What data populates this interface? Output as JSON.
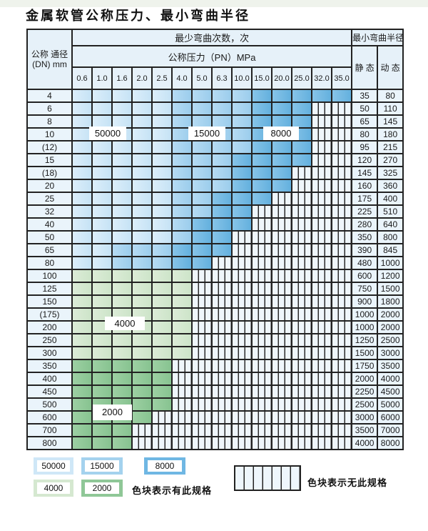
{
  "title": "金属软管公称压力、最小弯曲半径",
  "table": {
    "header": {
      "dn_lines": "公称 通径 (DN) mm",
      "bend_cycles": "最少弯曲次数，次",
      "min_radius": "最小弯曲半径",
      "pressure_title": "公称压力（PN）MPa",
      "pressures": [
        "0.6",
        "1.0",
        "1.6",
        "2.0",
        "2.5",
        "4.0",
        "5.0",
        "6.3",
        "10.0",
        "15.0",
        "20.0",
        "25.0",
        "32.0",
        "35.0"
      ],
      "static_label": "静 态",
      "dynamic_label": "动 态"
    },
    "cell_categories": {
      "50": "50000次",
      "15": "15000次",
      "8": "8000次",
      "g4": "4000次",
      "g2": "2000次",
      "x": "无此规格"
    },
    "rows": [
      {
        "dn": "4",
        "cells": [
          "50",
          "50",
          "50",
          "50",
          "50",
          "15",
          "15",
          "15",
          "15",
          "8",
          "8",
          "8",
          "8",
          "8"
        ],
        "static": "35",
        "dynamic": "80"
      },
      {
        "dn": "6",
        "cells": [
          "50",
          "50",
          "50",
          "50",
          "50",
          "15",
          "15",
          "15",
          "15",
          "8",
          "8",
          "8",
          "x",
          "x"
        ],
        "static": "50",
        "dynamic": "110"
      },
      {
        "dn": "8",
        "cells": [
          "50",
          "50",
          "50",
          "50",
          "50",
          "15",
          "15",
          "15",
          "15",
          "8",
          "8",
          "8",
          "x",
          "x"
        ],
        "static": "65",
        "dynamic": "145"
      },
      {
        "dn": "10",
        "cells": [
          "50",
          "50",
          "50",
          "50",
          "50",
          "15",
          "15",
          "15",
          "15",
          "8",
          "8",
          "8",
          "x",
          "x"
        ],
        "static": "80",
        "dynamic": "180"
      },
      {
        "dn": "(12)",
        "cells": [
          "50",
          "50",
          "50",
          "50",
          "50",
          "15",
          "15",
          "15",
          "15",
          "8",
          "8",
          "8",
          "x",
          "x"
        ],
        "static": "95",
        "dynamic": "215"
      },
      {
        "dn": "15",
        "cells": [
          "50",
          "50",
          "50",
          "50",
          "50",
          "15",
          "15",
          "15",
          "8",
          "8",
          "8",
          "8",
          "x",
          "x"
        ],
        "static": "120",
        "dynamic": "270"
      },
      {
        "dn": "(18)",
        "cells": [
          "50",
          "50",
          "50",
          "50",
          "50",
          "15",
          "15",
          "15",
          "8",
          "8",
          "8",
          "x",
          "x",
          "x"
        ],
        "static": "145",
        "dynamic": "325"
      },
      {
        "dn": "20",
        "cells": [
          "50",
          "50",
          "50",
          "50",
          "50",
          "15",
          "15",
          "15",
          "8",
          "8",
          "8",
          "x",
          "x",
          "x"
        ],
        "static": "160",
        "dynamic": "360"
      },
      {
        "dn": "25",
        "cells": [
          "50",
          "50",
          "50",
          "50",
          "50",
          "15",
          "15",
          "8",
          "8",
          "8",
          "x",
          "x",
          "x",
          "x"
        ],
        "static": "175",
        "dynamic": "400"
      },
      {
        "dn": "32",
        "cells": [
          "50",
          "50",
          "50",
          "50",
          "50",
          "15",
          "15",
          "8",
          "8",
          "x",
          "x",
          "x",
          "x",
          "x"
        ],
        "static": "225",
        "dynamic": "510"
      },
      {
        "dn": "40",
        "cells": [
          "50",
          "50",
          "50",
          "50",
          "50",
          "15",
          "8",
          "8",
          "8",
          "x",
          "x",
          "x",
          "x",
          "x"
        ],
        "static": "280",
        "dynamic": "640"
      },
      {
        "dn": "50",
        "cells": [
          "50",
          "50",
          "50",
          "50",
          "50",
          "15",
          "8",
          "8",
          "x",
          "x",
          "x",
          "x",
          "x",
          "x"
        ],
        "static": "350",
        "dynamic": "800"
      },
      {
        "dn": "65",
        "cells": [
          "50",
          "50",
          "15",
          "15",
          "15",
          "8",
          "8",
          "8",
          "x",
          "x",
          "x",
          "x",
          "x",
          "x"
        ],
        "static": "390",
        "dynamic": "845"
      },
      {
        "dn": "80",
        "cells": [
          "50",
          "50",
          "15",
          "15",
          "15",
          "8",
          "8",
          "x",
          "x",
          "x",
          "x",
          "x",
          "x",
          "x"
        ],
        "static": "480",
        "dynamic": "1000"
      },
      {
        "dn": "100",
        "cells": [
          "g4",
          "g4",
          "g4",
          "g4",
          "g4",
          "g4",
          "x",
          "x",
          "x",
          "x",
          "x",
          "x",
          "x",
          "x"
        ],
        "static": "600",
        "dynamic": "1200"
      },
      {
        "dn": "125",
        "cells": [
          "g4",
          "g4",
          "g4",
          "g4",
          "g4",
          "g4",
          "x",
          "x",
          "x",
          "x",
          "x",
          "x",
          "x",
          "x"
        ],
        "static": "750",
        "dynamic": "1500"
      },
      {
        "dn": "150",
        "cells": [
          "g4",
          "g4",
          "g4",
          "g4",
          "g4",
          "g4",
          "x",
          "x",
          "x",
          "x",
          "x",
          "x",
          "x",
          "x"
        ],
        "static": "900",
        "dynamic": "1800"
      },
      {
        "dn": "(175)",
        "cells": [
          "g4",
          "g4",
          "g4",
          "g4",
          "g4",
          "g4",
          "x",
          "x",
          "x",
          "x",
          "x",
          "x",
          "x",
          "x"
        ],
        "static": "1000",
        "dynamic": "2000"
      },
      {
        "dn": "200",
        "cells": [
          "g4",
          "g4",
          "g4",
          "g4",
          "g4",
          "g4",
          "x",
          "x",
          "x",
          "x",
          "x",
          "x",
          "x",
          "x"
        ],
        "static": "1000",
        "dynamic": "2000"
      },
      {
        "dn": "250",
        "cells": [
          "g4",
          "g4",
          "g4",
          "g4",
          "g4",
          "g4",
          "x",
          "x",
          "x",
          "x",
          "x",
          "x",
          "x",
          "x"
        ],
        "static": "1250",
        "dynamic": "2500"
      },
      {
        "dn": "300",
        "cells": [
          "g4",
          "g4",
          "g4",
          "g4",
          "g4",
          "g4",
          "x",
          "x",
          "x",
          "x",
          "x",
          "x",
          "x",
          "x"
        ],
        "static": "1500",
        "dynamic": "3000"
      },
      {
        "dn": "350",
        "cells": [
          "g2",
          "g2",
          "g2",
          "g2",
          "g2",
          "x",
          "x",
          "x",
          "x",
          "x",
          "x",
          "x",
          "x",
          "x"
        ],
        "static": "1750",
        "dynamic": "3500"
      },
      {
        "dn": "400",
        "cells": [
          "g2",
          "g2",
          "g2",
          "g2",
          "g2",
          "x",
          "x",
          "x",
          "x",
          "x",
          "x",
          "x",
          "x",
          "x"
        ],
        "static": "2000",
        "dynamic": "4000"
      },
      {
        "dn": "450",
        "cells": [
          "g2",
          "g2",
          "g2",
          "g2",
          "g2",
          "x",
          "x",
          "x",
          "x",
          "x",
          "x",
          "x",
          "x",
          "x"
        ],
        "static": "2250",
        "dynamic": "4500"
      },
      {
        "dn": "500",
        "cells": [
          "g2",
          "g2",
          "g2",
          "g2",
          "g2",
          "x",
          "x",
          "x",
          "x",
          "x",
          "x",
          "x",
          "x",
          "x"
        ],
        "static": "2500",
        "dynamic": "5000"
      },
      {
        "dn": "600",
        "cells": [
          "g2",
          "g2",
          "g2",
          "g2",
          "x",
          "x",
          "x",
          "x",
          "x",
          "x",
          "x",
          "x",
          "x",
          "x"
        ],
        "static": "3000",
        "dynamic": "6000"
      },
      {
        "dn": "700",
        "cells": [
          "g2",
          "g2",
          "g2",
          "x",
          "x",
          "x",
          "x",
          "x",
          "x",
          "x",
          "x",
          "x",
          "x",
          "x"
        ],
        "static": "3500",
        "dynamic": "7000"
      },
      {
        "dn": "800",
        "cells": [
          "g2",
          "g2",
          "g2",
          "x",
          "x",
          "x",
          "x",
          "x",
          "x",
          "x",
          "x",
          "x",
          "x",
          "x"
        ],
        "static": "4000",
        "dynamic": "8000"
      }
    ]
  },
  "overlays": {
    "b50000": "50000",
    "b15000": "15000",
    "b8000": "8000",
    "b4000": "4000",
    "b2000": "2000"
  },
  "legend": {
    "items": [
      {
        "label": "50000",
        "color": "#cfe7f7",
        "row": 1
      },
      {
        "label": "15000",
        "color": "#a4d2ee",
        "row": 1
      },
      {
        "label": "8000",
        "color": "#6fb7e3",
        "row": 1
      },
      {
        "label": "4000",
        "color": "#d5e8d0",
        "row": 2
      },
      {
        "label": "2000",
        "color": "#8fc797",
        "row": 2
      }
    ],
    "has_spec_text": "色块表示有此规格",
    "no_spec_text": "色块表示无此规格"
  },
  "colors": {
    "border": "#222222",
    "header_bg": "#e6f1f9",
    "label_cell_bg": "#eaf4fb",
    "blue_50000": "#cfe7f7",
    "blue_15000": "#a4d2ee",
    "blue_8000": "#6fb7e3",
    "green_4000": "#d5e8d0",
    "green_2000": "#8fc797",
    "hatch_bg": "#eff6fb"
  }
}
